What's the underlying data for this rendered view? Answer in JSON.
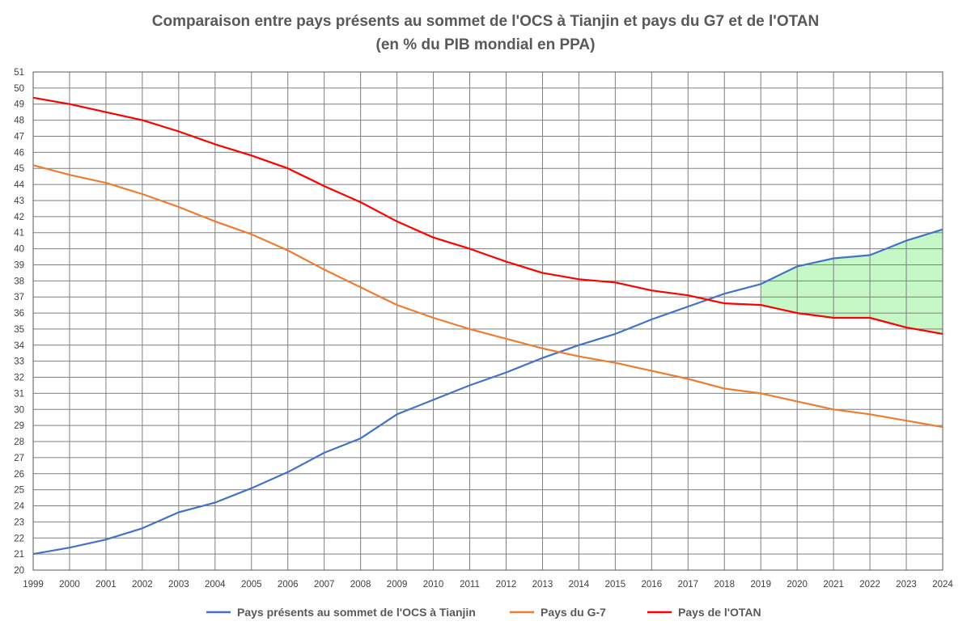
{
  "chart_data": {
    "type": "line",
    "title": "Comparaison entre pays présents au sommet de l'OCS à Tianjin et pays du G7 et de l'OTAN",
    "subtitle": "(en % du PIB mondial en PPA)",
    "xlabel": "",
    "ylabel": "",
    "x": [
      1999,
      2000,
      2001,
      2002,
      2003,
      2004,
      2005,
      2006,
      2007,
      2008,
      2009,
      2010,
      2011,
      2012,
      2013,
      2014,
      2015,
      2016,
      2017,
      2018,
      2019,
      2020,
      2021,
      2022,
      2023,
      2024
    ],
    "ylim": [
      20,
      51
    ],
    "ytick_step": 1,
    "grid": true,
    "legend_position": "bottom",
    "series": [
      {
        "name": "Pays présents au sommet de l'OCS à Tianjin",
        "color": "#4472C4",
        "values": [
          21.0,
          21.4,
          21.9,
          22.6,
          23.6,
          24.2,
          25.1,
          26.1,
          27.3,
          28.2,
          29.7,
          30.6,
          31.5,
          32.3,
          33.2,
          34.0,
          34.7,
          35.6,
          36.4,
          37.2,
          37.8,
          38.9,
          39.4,
          39.6,
          40.5,
          41.2
        ]
      },
      {
        "name": "Pays du G-7",
        "color": "#ED7D31",
        "values": [
          45.2,
          44.6,
          44.1,
          43.4,
          42.6,
          41.7,
          40.9,
          39.9,
          38.7,
          37.6,
          36.5,
          35.7,
          35.0,
          34.4,
          33.8,
          33.3,
          32.9,
          32.4,
          31.9,
          31.3,
          31.0,
          30.5,
          30.0,
          29.7,
          29.3,
          28.9
        ]
      },
      {
        "name": "Pays de l'OTAN",
        "color": "#FF0000",
        "values": [
          49.4,
          49.0,
          48.5,
          48.0,
          47.3,
          46.5,
          45.8,
          45.0,
          43.9,
          42.9,
          41.7,
          40.7,
          40.0,
          39.2,
          38.5,
          38.1,
          37.9,
          37.4,
          37.1,
          36.6,
          36.5,
          36.0,
          35.7,
          35.7,
          35.1,
          34.7
        ]
      }
    ],
    "shaded_region": {
      "between": [
        "Pays présents au sommet de l'OCS à Tianjin",
        "Pays de l'OTAN"
      ],
      "from_x": 2019,
      "to_x": 2024,
      "color": "#C6F7C6"
    }
  }
}
